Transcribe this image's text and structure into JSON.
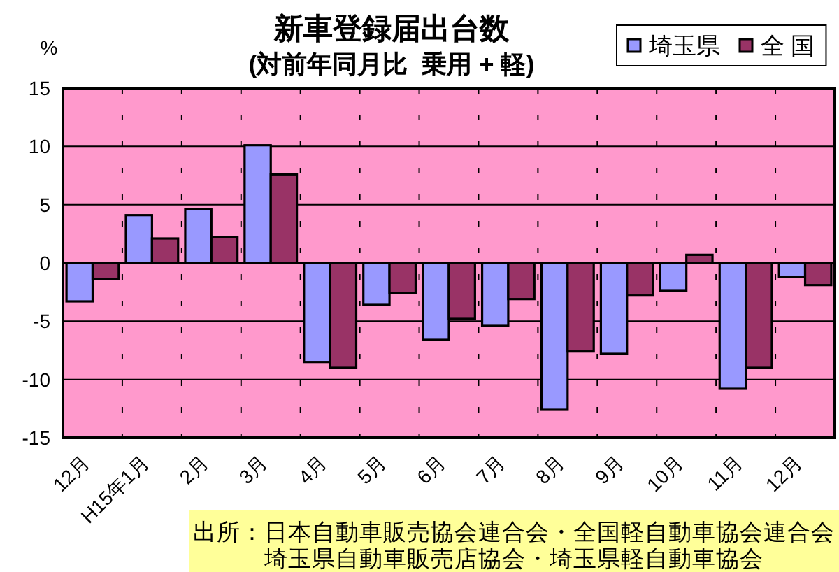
{
  "chart_data": {
    "type": "bar",
    "title": "新車登録届出台数",
    "subtitle": "(対前年同月比  乗用 + 軽)",
    "ylabel": "%",
    "categories": [
      "12月",
      "H15年1月",
      "2月",
      "3月",
      "4月",
      "5月",
      "6月",
      "7月",
      "8月",
      "9月",
      "10月",
      "11月",
      "12月"
    ],
    "series": [
      {
        "name": "埼玉県",
        "color": "#9999ff",
        "values": [
          -3.3,
          4.1,
          4.6,
          10.1,
          -8.5,
          -3.6,
          -6.6,
          -5.4,
          -12.6,
          -7.8,
          -2.4,
          -10.8,
          -1.2
        ]
      },
      {
        "name": "全 国",
        "color": "#993366",
        "values": [
          -1.4,
          2.1,
          2.2,
          7.6,
          -9.0,
          -2.6,
          -4.8,
          -3.1,
          -7.6,
          -2.8,
          0.7,
          -9.0,
          -1.9
        ]
      }
    ],
    "ylim": [
      -15,
      15
    ],
    "yticks": [
      -15,
      -10,
      -5,
      0,
      5,
      10,
      15
    ],
    "grid": true,
    "legend": "top right",
    "annotations": [
      "出所：日本自動車販売協会連合会・全国軽自動車協会連合会",
      "埼玉県自動車販売店協会・埼玉県軽自動車協会"
    ]
  }
}
